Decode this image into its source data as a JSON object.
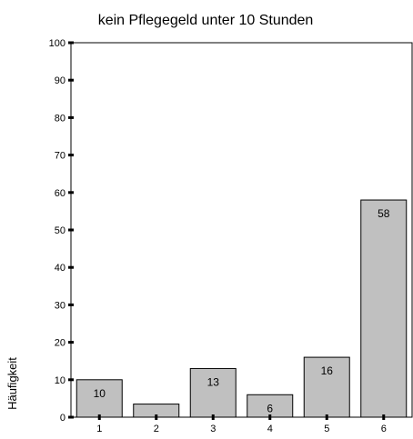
{
  "chart_data": {
    "type": "bar",
    "title": "kein Pflegegeld unter 10 Stunden",
    "xlabel": "",
    "ylabel": "Häufigkeit",
    "categories": [
      "1",
      "2",
      "3",
      "4",
      "5",
      "6"
    ],
    "values": [
      10,
      3.5,
      13,
      6,
      16,
      58
    ],
    "data_labels": [
      "10",
      "",
      "13",
      "6",
      "16",
      "58"
    ],
    "ylim": [
      0,
      100
    ],
    "yticks": [
      0,
      10,
      20,
      30,
      40,
      50,
      60,
      70,
      80,
      90,
      100
    ],
    "grid": false,
    "legend": "none",
    "colors": {
      "bar_fill": "#c0c0c0",
      "bar_stroke": "#000000"
    }
  }
}
